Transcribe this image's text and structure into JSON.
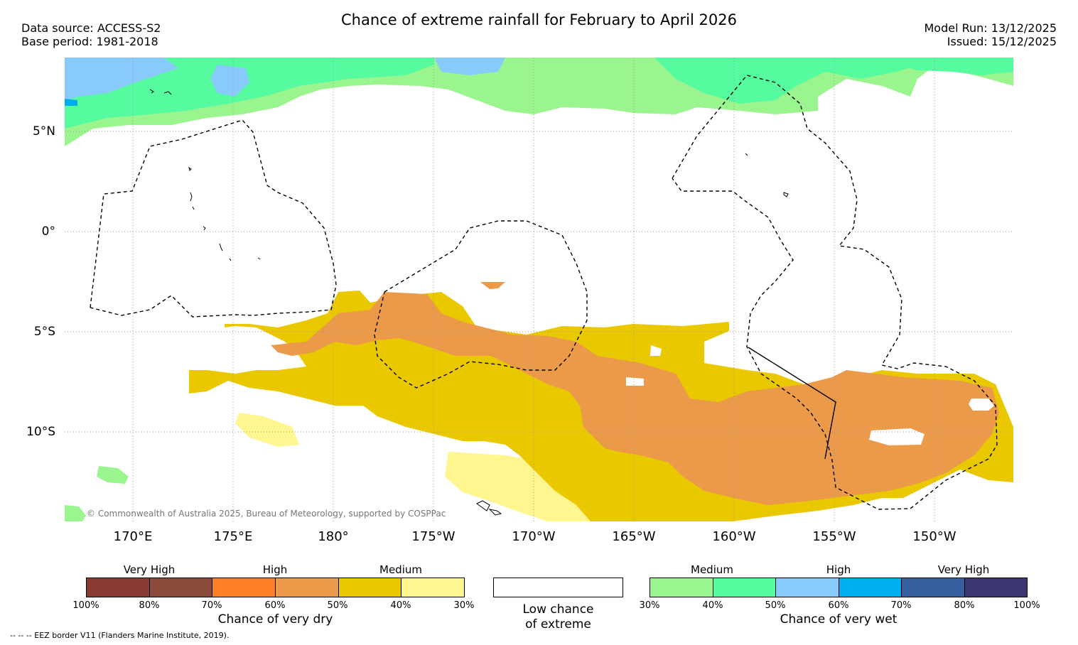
{
  "header": {
    "title": "Chance of extreme rainfall for February to April 2026",
    "data_source": "Data source: ACCESS-S2",
    "base_period": "Base period: 1981-2018",
    "model_run": "Model Run: 13/12/2025",
    "issued": "Issued: 15/12/2025"
  },
  "map": {
    "lon_labels": [
      "170°E",
      "175°E",
      "180°",
      "175°W",
      "170°W",
      "165°W",
      "160°W",
      "155°W",
      "150°W"
    ],
    "lat_labels": [
      "5°N",
      "0°",
      "5°S",
      "10°S"
    ],
    "copyright": "© Commonwealth of Australia 2025, Bureau of Meteorology, supported by COSPPac"
  },
  "legend": {
    "dry": {
      "group_labels": [
        "Very High",
        "High",
        "Medium"
      ],
      "ticks": [
        "100%",
        "80%",
        "70%",
        "60%",
        "50%",
        "40%",
        "30%"
      ],
      "colors": [
        "#8B3A33",
        "#8B4A3A",
        "#FF7F27",
        "#EA9A48",
        "#EAC800",
        "#FFF68F"
      ],
      "caption": "Chance of very dry"
    },
    "neutral": {
      "caption_line1": "Low chance",
      "caption_line2": "of extreme",
      "color": "#FFFFFF"
    },
    "wet": {
      "group_labels": [
        "Medium",
        "High",
        "Very High"
      ],
      "ticks": [
        "30%",
        "40%",
        "50%",
        "60%",
        "70%",
        "80%",
        "100%"
      ],
      "colors": [
        "#9AF58E",
        "#55FB9E",
        "#88CAFA",
        "#00B0EE",
        "#375E9E",
        "#3C3672"
      ],
      "caption": "Chance of very wet"
    }
  },
  "footer": {
    "eez_note": "--  --  -- EEZ border V11 (Flanders Marine Institute, 2019)."
  }
}
